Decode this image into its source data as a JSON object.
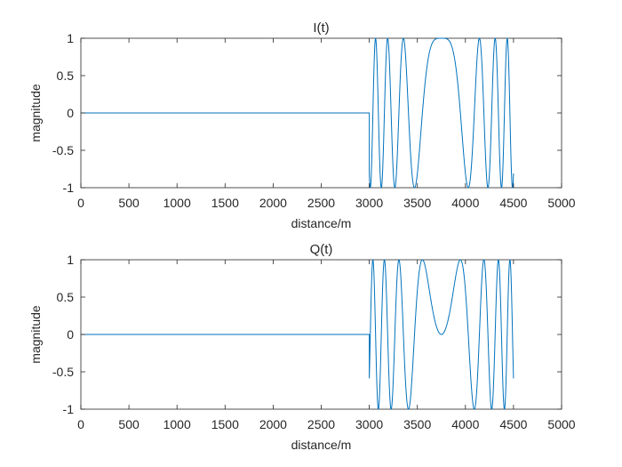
{
  "chart_data": [
    {
      "type": "line",
      "title": "I(t)",
      "xlabel": "distance/m",
      "ylabel": "magnitude",
      "xlim": [
        0,
        5000
      ],
      "ylim": [
        -1,
        1
      ],
      "xticks": [
        "0",
        "500",
        "1000",
        "1500",
        "2000",
        "2500",
        "3000",
        "3500",
        "4000",
        "4500",
        "5000"
      ],
      "yticks": [
        "1",
        "0.5",
        "0",
        "-0.5",
        "-1"
      ],
      "grid": false,
      "line_color": "#0072BD",
      "series": [
        {
          "signal": "chirp_cos",
          "x_range": [
            0,
            4500
          ],
          "pulse_start": 3000,
          "pulse_end": 4500,
          "chirp_center": 3750,
          "zero_before_pulse": true
        }
      ]
    },
    {
      "type": "line",
      "title": "Q(t)",
      "xlabel": "distance/m",
      "ylabel": "magnitude",
      "xlim": [
        0,
        5000
      ],
      "ylim": [
        -1,
        1
      ],
      "xticks": [
        "0",
        "500",
        "1000",
        "1500",
        "2000",
        "2500",
        "3000",
        "3500",
        "4000",
        "4500",
        "5000"
      ],
      "yticks": [
        "1",
        "0.5",
        "0",
        "-0.5",
        "-1"
      ],
      "grid": false,
      "line_color": "#0072BD",
      "series": [
        {
          "signal": "chirp_sin",
          "x_range": [
            0,
            4500
          ],
          "pulse_start": 3000,
          "pulse_end": 4500,
          "chirp_center": 3750,
          "zero_before_pulse": true
        }
      ]
    }
  ]
}
